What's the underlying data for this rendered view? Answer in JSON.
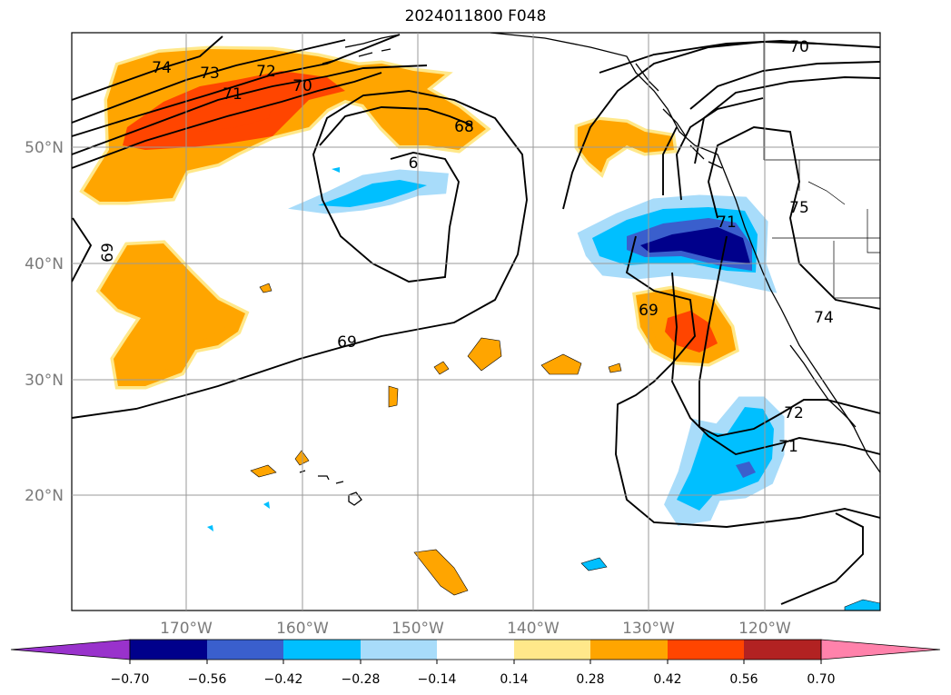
{
  "title": "2024011800 F048",
  "map": {
    "lon_labels": [
      "170°W",
      "160°W",
      "150°W",
      "140°W",
      "130°W",
      "120°W"
    ],
    "lat_labels": [
      "50°N",
      "40°N",
      "30°N",
      "20°N"
    ],
    "contour_levels": [
      "74",
      "73",
      "72",
      "71",
      "70",
      "68",
      "69",
      "69",
      "69",
      "70",
      "75",
      "71",
      "74",
      "72",
      "71",
      "69",
      "6"
    ],
    "colors": {
      "pos_1": "#ffe88a",
      "pos_2": "#ffa500",
      "pos_3": "#ff4500",
      "neg_1": "#a8dcfa",
      "neg_2": "#00bfff",
      "neg_3": "#3a5fcd",
      "neg_4": "#00008b"
    }
  },
  "colorbar": {
    "ticks": [
      "−0.70",
      "−0.56",
      "−0.42",
      "−0.28",
      "−0.14",
      "0.14",
      "0.28",
      "0.42",
      "0.56",
      "0.70"
    ],
    "colors": [
      "#9932cc",
      "#00008b",
      "#3a5fcd",
      "#00bfff",
      "#a8dcfa",
      "#ffffff",
      "#ffe88a",
      "#ffa500",
      "#ff4500",
      "#b22222",
      "#ff82ab"
    ]
  }
}
